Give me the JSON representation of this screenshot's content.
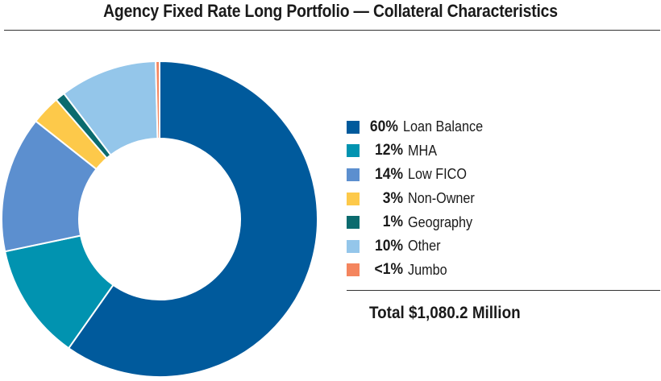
{
  "chart_data": {
    "type": "pie",
    "variant": "donut",
    "title": "Agency Fixed Rate Long Portfolio — Collateral Characteristics",
    "series": [
      {
        "name": "Loan Balance",
        "label": "60%",
        "value": 60,
        "color": "#005a9c"
      },
      {
        "name": "MHA",
        "label": "12%",
        "value": 12,
        "color": "#0193b0"
      },
      {
        "name": "Low FICO",
        "label": "14%",
        "value": 14,
        "color": "#5c8fcf"
      },
      {
        "name": "Non-Owner",
        "label": "3%",
        "value": 3,
        "color": "#fdc94a"
      },
      {
        "name": "Geography",
        "label": "1%",
        "value": 1,
        "color": "#0b6b6e"
      },
      {
        "name": "Other",
        "label": "10%",
        "value": 10,
        "color": "#94c6ea"
      },
      {
        "name": "Jumbo",
        "label": "<1%",
        "value": 0.4,
        "color": "#f4855e"
      }
    ],
    "total": "Total $1,080.2 Million",
    "legend_position": "right"
  }
}
